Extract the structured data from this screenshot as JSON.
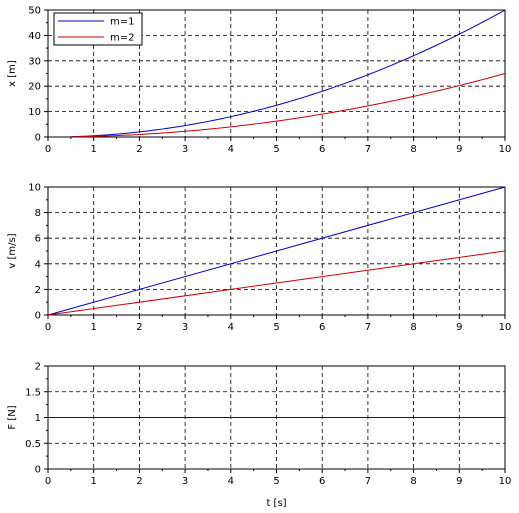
{
  "chart_data": [
    {
      "type": "line",
      "ylabel": "x [m]",
      "xlim": [
        0,
        10
      ],
      "ylim": [
        0,
        50
      ],
      "xticks": [
        0,
        1,
        2,
        3,
        4,
        5,
        6,
        7,
        8,
        9,
        10
      ],
      "yticks": [
        0,
        10,
        20,
        30,
        40,
        50
      ],
      "grid": true,
      "legend": "top-left",
      "series": [
        {
          "name": "m=1",
          "color": "#0000cc",
          "x": [
            0.5,
            1,
            2,
            3,
            4,
            5,
            6,
            7,
            8,
            9,
            10
          ],
          "y": [
            0.125,
            0.5,
            2,
            4.5,
            8,
            12.5,
            18,
            24.5,
            32,
            40.5,
            50
          ]
        },
        {
          "name": "m=2",
          "color": "#cc0000",
          "x": [
            0.5,
            1,
            2,
            3,
            4,
            5,
            6,
            7,
            8,
            9,
            10
          ],
          "y": [
            0.0625,
            0.25,
            1,
            2.25,
            4,
            6.25,
            9,
            12.25,
            16,
            20.25,
            25
          ]
        }
      ]
    },
    {
      "type": "line",
      "ylabel": "v [m/s]",
      "xlim": [
        0,
        10
      ],
      "ylim": [
        0,
        10
      ],
      "xticks": [
        0,
        1,
        2,
        3,
        4,
        5,
        6,
        7,
        8,
        9,
        10
      ],
      "yticks": [
        0,
        2,
        4,
        6,
        8,
        10
      ],
      "grid": true,
      "series": [
        {
          "color": "#0000cc",
          "x": [
            0,
            10
          ],
          "y": [
            0,
            10
          ]
        },
        {
          "color": "#cc0000",
          "x": [
            0,
            10
          ],
          "y": [
            0,
            5
          ]
        }
      ]
    },
    {
      "type": "line",
      "ylabel": "F [N]",
      "xlabel": "t [s]",
      "xlim": [
        0,
        10
      ],
      "ylim": [
        0,
        2
      ],
      "xticks": [
        0,
        1,
        2,
        3,
        4,
        5,
        6,
        7,
        8,
        9,
        10
      ],
      "yticks": [
        0,
        0.5,
        1,
        1.5,
        2
      ],
      "grid": true,
      "series": [
        {
          "color": "#0000cc",
          "x": [
            0,
            10
          ],
          "y": [
            1,
            1
          ]
        }
      ]
    }
  ]
}
